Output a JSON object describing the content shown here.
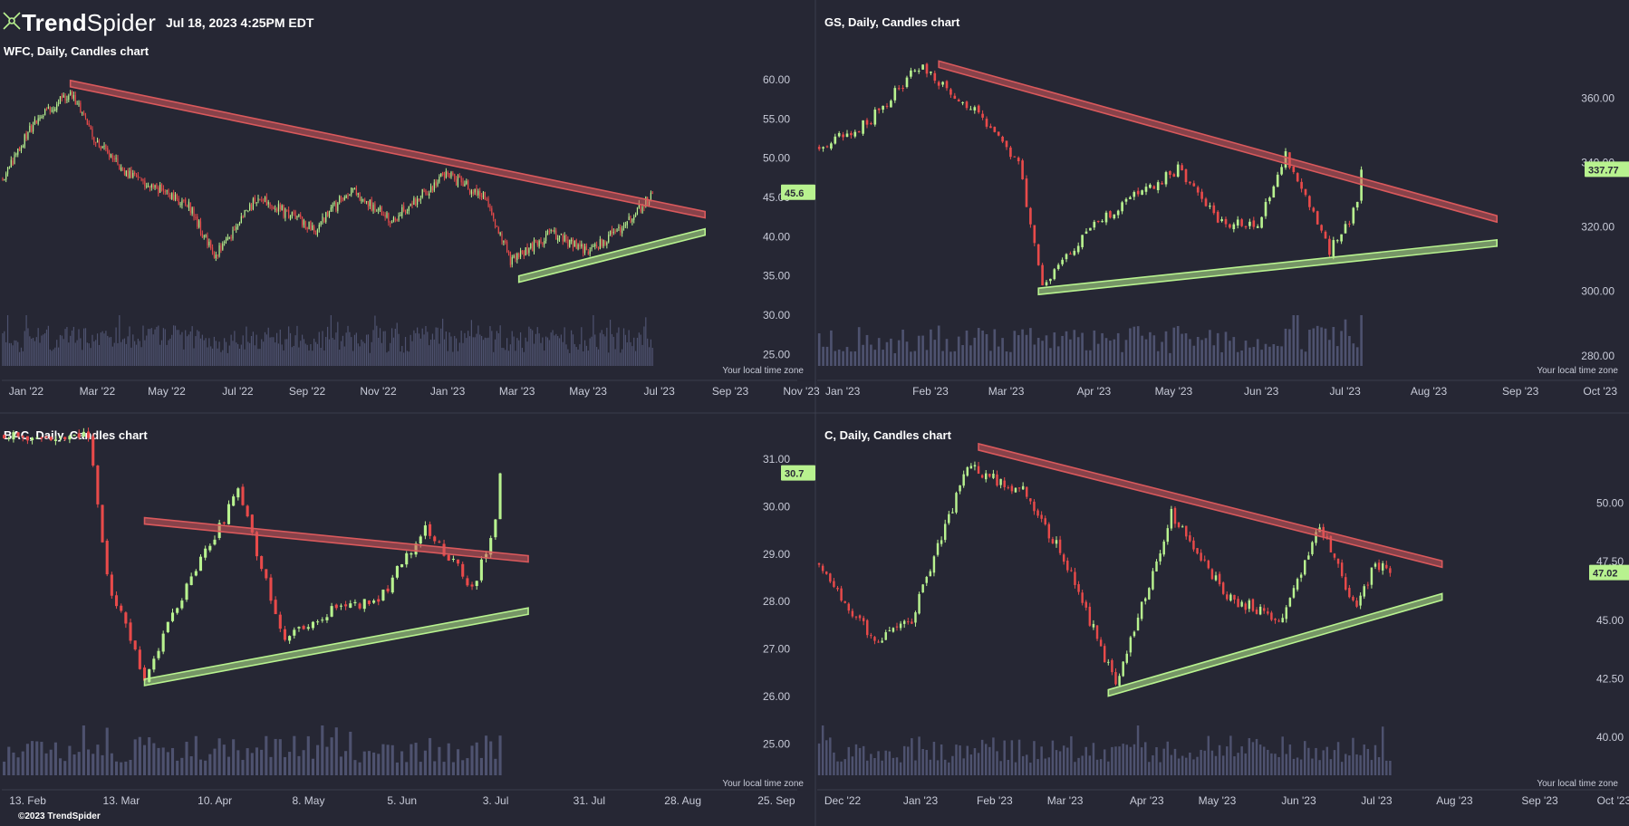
{
  "header": {
    "brand_bold": "Trend",
    "brand_regular": "Spider",
    "timestamp": "Jul 18, 2023 4:25PM EDT",
    "copyright": "©2023 TrendSpider"
  },
  "colors": {
    "background": "#262734",
    "up": "#b8f28f",
    "down": "#e84a4a",
    "resistance_fill": "#d9595c",
    "support_fill": "#b8f28f",
    "volume": "#565a7a",
    "text": "#ffffff",
    "axis_text": "#c8cbd8",
    "divider": "#3b3d4d"
  },
  "chart_data": [
    {
      "id": "wfc",
      "type": "candlestick",
      "title": "WFC, Daily, Candles chart",
      "timezone_note": "Your local time zone",
      "price_badge": "45.6",
      "last_price": 45.6,
      "ylim": [
        24,
        63
      ],
      "y_ticks": [
        "60.00",
        "55.00",
        "50.00",
        "45.00",
        "40.00",
        "35.00",
        "30.00",
        "25.00"
      ],
      "y_tick_values": [
        60,
        55,
        50,
        45,
        40,
        35,
        30,
        25
      ],
      "x_ticks": [
        "Jan '22",
        "Mar '22",
        "May '22",
        "Jul '22",
        "Sep '22",
        "Nov '22",
        "Jan '23",
        "Mar '23",
        "May '23",
        "Jul '23",
        "Sep '23",
        "Nov '23"
      ],
      "x_tick_index": [
        0,
        42,
        83,
        125,
        166,
        208,
        249,
        290,
        332,
        374,
        416,
        458
      ],
      "total_slots": 470,
      "n_candles": 385,
      "seed": 11,
      "anchors": [
        [
          0,
          47.5
        ],
        [
          20,
          55
        ],
        [
          40,
          58.5
        ],
        [
          55,
          52
        ],
        [
          75,
          48
        ],
        [
          110,
          44
        ],
        [
          125,
          37.5
        ],
        [
          150,
          45
        ],
        [
          185,
          41
        ],
        [
          205,
          46
        ],
        [
          230,
          42
        ],
        [
          262,
          48
        ],
        [
          285,
          45
        ],
        [
          300,
          37
        ],
        [
          325,
          40.5
        ],
        [
          345,
          38
        ],
        [
          365,
          41
        ],
        [
          385,
          45.6
        ]
      ],
      "resistance": [
        [
          40,
          59.5
        ],
        [
          415,
          42.8
        ]
      ],
      "support": [
        [
          305,
          34.6
        ],
        [
          415,
          40.6
        ]
      ],
      "volume_max": 1
    },
    {
      "id": "gs",
      "type": "candlestick",
      "title": "GS, Daily, Candles chart",
      "timezone_note": "Your local time zone",
      "price_badge": "337.77",
      "last_price": 337.77,
      "ylim": [
        278,
        373
      ],
      "y_ticks": [
        "360.00",
        "340.00",
        "320.00",
        "300.00",
        "280.00"
      ],
      "y_tick_values": [
        360,
        340,
        320,
        300,
        280
      ],
      "x_ticks": [
        "Jan '23",
        "Feb '23",
        "Mar '23",
        "Apr '23",
        "May '23",
        "Jun '23",
        "Jul '23",
        "Aug '23",
        "Sep '23",
        "Oct '23"
      ],
      "x_tick_index": [
        0,
        22,
        41,
        63,
        83,
        105,
        126,
        147,
        170,
        190
      ],
      "total_slots": 200,
      "n_candles": 137,
      "seed": 23,
      "anchors": [
        [
          0,
          345
        ],
        [
          12,
          352
        ],
        [
          25,
          370
        ],
        [
          38,
          357
        ],
        [
          50,
          340
        ],
        [
          56,
          302
        ],
        [
          68,
          320
        ],
        [
          80,
          330
        ],
        [
          90,
          338
        ],
        [
          100,
          322
        ],
        [
          110,
          320
        ],
        [
          117,
          342
        ],
        [
          128,
          313
        ],
        [
          133,
          321
        ],
        [
          137,
          337.77
        ]
      ],
      "resistance": [
        [
          30,
          370.5
        ],
        [
          170,
          322.5
        ]
      ],
      "support": [
        [
          55,
          300
        ],
        [
          170,
          315
        ]
      ],
      "volume_max": 1
    },
    {
      "id": "bac",
      "type": "candlestick",
      "title": "BAC, Daily, Candles chart",
      "timezone_note": "Your local time zone",
      "price_badge": "30.7",
      "last_price": 30.7,
      "ylim": [
        24.4,
        31.8
      ],
      "y_ticks": [
        "31.00",
        "30.00",
        "29.00",
        "28.00",
        "27.00",
        "26.00",
        "25.00"
      ],
      "y_tick_values": [
        31,
        30,
        29,
        28,
        27,
        26,
        25
      ],
      "x_ticks": [
        "13. Feb",
        "13. Mar",
        "10. Apr",
        "8. May",
        "5. Jun",
        "3. Jul",
        "31. Jul",
        "28. Aug",
        "25. Sep"
      ],
      "x_tick_index": [
        0,
        20,
        40,
        60,
        80,
        100,
        120,
        140,
        160
      ],
      "total_slots": 170,
      "n_candles": 107,
      "seed": 37,
      "anchors": [
        [
          18,
          31.5
        ],
        [
          22,
          28.5
        ],
        [
          30,
          26.4
        ],
        [
          40,
          28.5
        ],
        [
          50,
          30.3
        ],
        [
          60,
          27.2
        ],
        [
          70,
          27.8
        ],
        [
          80,
          28
        ],
        [
          90,
          29.6
        ],
        [
          100,
          28.3
        ],
        [
          104,
          29.3
        ],
        [
          107,
          30.7
        ]
      ],
      "resistance": [
        [
          30,
          29.7
        ],
        [
          112,
          28.9
        ]
      ],
      "support": [
        [
          30,
          26.3
        ],
        [
          112,
          27.8
        ]
      ],
      "volume_max": 1
    },
    {
      "id": "c",
      "type": "candlestick",
      "title": "C, Daily, Candles chart",
      "timezone_note": "Your local time zone",
      "price_badge": "47.02",
      "last_price": 47.02,
      "ylim": [
        38.5,
        53.5
      ],
      "y_ticks": [
        "50.00",
        "47.50",
        "45.00",
        "42.50",
        "40.00"
      ],
      "y_tick_values": [
        50,
        47.5,
        45,
        42.5,
        40
      ],
      "x_ticks": [
        "Dec '22",
        "Jan '23",
        "Feb '23",
        "Mar '23",
        "Apr '23",
        "May '23",
        "Jun '23",
        "Jul '23",
        "Aug '23",
        "Sep '23",
        "Oct '23"
      ],
      "x_tick_index": [
        0,
        21,
        41,
        60,
        82,
        101,
        123,
        144,
        165,
        188,
        208
      ],
      "total_slots": 215,
      "n_candles": 155,
      "seed": 53,
      "anchors": [
        [
          0,
          47.5
        ],
        [
          15,
          44
        ],
        [
          25,
          45
        ],
        [
          40,
          51.5
        ],
        [
          55,
          50.5
        ],
        [
          65,
          48
        ],
        [
          80,
          42.3
        ],
        [
          95,
          49.5
        ],
        [
          110,
          46
        ],
        [
          125,
          45
        ],
        [
          135,
          49
        ],
        [
          145,
          45.4
        ],
        [
          150,
          47.5
        ],
        [
          155,
          47.02
        ]
      ],
      "resistance": [
        [
          43,
          52.4
        ],
        [
          168,
          47.4
        ]
      ],
      "support": [
        [
          78,
          41.9
        ],
        [
          168,
          46
        ]
      ],
      "volume_max": 1
    }
  ]
}
